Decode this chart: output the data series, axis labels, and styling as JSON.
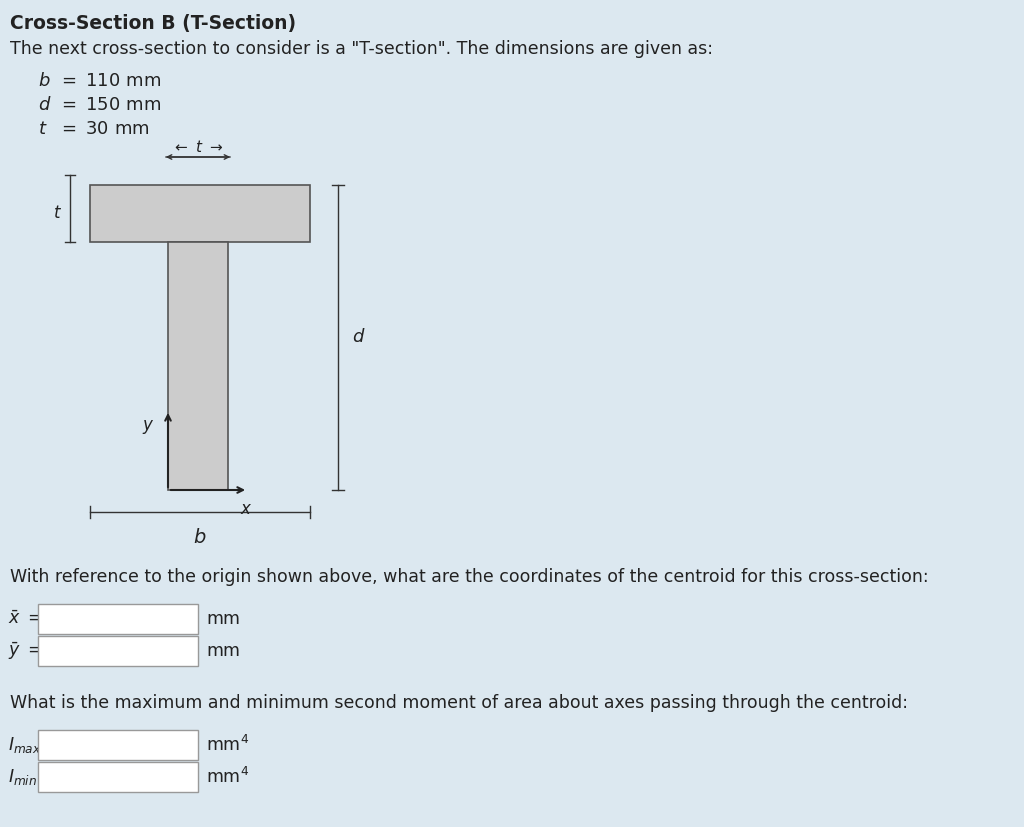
{
  "background_color": "#dce8f0",
  "title": "Cross-Section B (T-Section)",
  "subtitle": "The next cross-section to consider is a \"T-section\". The dimensions are given as:",
  "fig_width": 10.24,
  "fig_height": 8.27,
  "fill_color": "#cccccc",
  "edge_color": "#555555",
  "text_color": "#222222",
  "body_text_0": "With reference to the origin shown above, what are the coordinates of the centroid for this cross-section:",
  "body_text_1": "What is the maximum and minimum second moment of area about axes passing through the centroid:"
}
